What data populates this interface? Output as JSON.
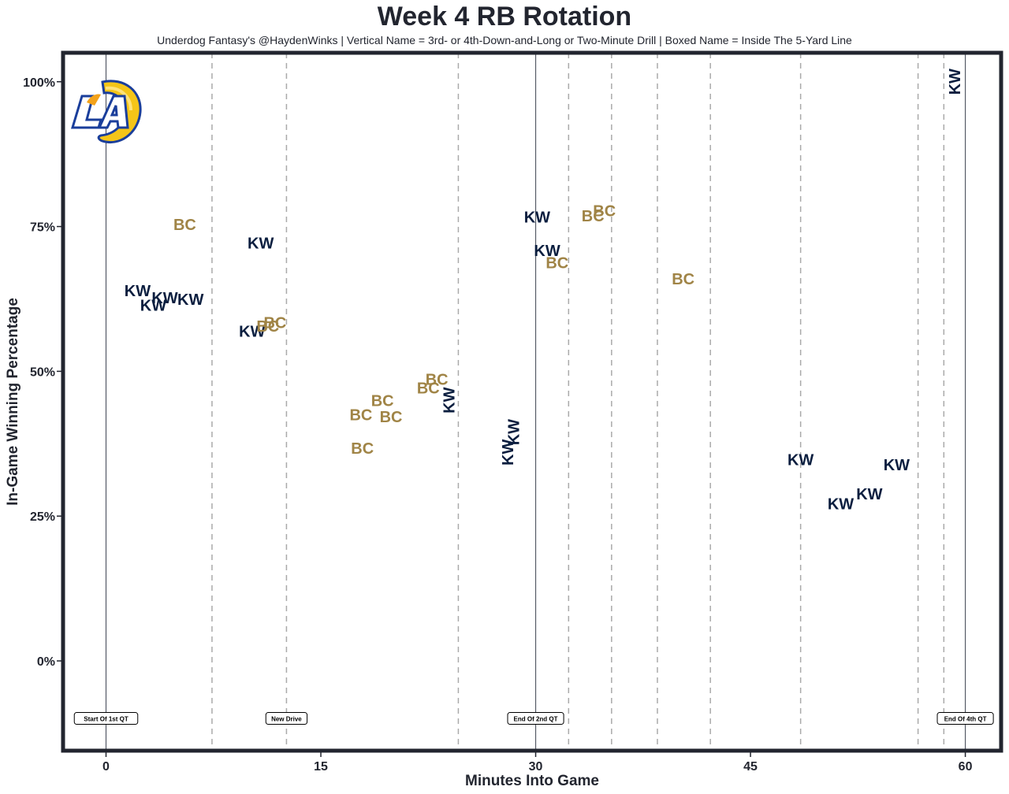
{
  "chart_data": {
    "type": "scatter",
    "title": "Week 4 RB Rotation",
    "subtitle": "Underdog Fantasy's @HaydenWinks | Vertical Name = 3rd- or 4th-Down-and-Long or Two-Minute Drill | Boxed Name = Inside The 5-Yard Line",
    "xlabel": "Minutes Into Game",
    "ylabel": "In-Game Winning Percentage",
    "xlim": [
      -3,
      62.5
    ],
    "ylim": [
      -0.155,
      1.05
    ],
    "xticks": [
      0,
      15,
      30,
      45,
      60
    ],
    "xtick_labels": [
      "0",
      "15",
      "30",
      "45",
      "60"
    ],
    "yticks": [
      0,
      0.25,
      0.5,
      0.75,
      1.0
    ],
    "ytick_labels": [
      "0%",
      "25%",
      "50%",
      "75%",
      "100%"
    ],
    "colors": {
      "KW": "#0b1e3f",
      "BC": "#a08446"
    },
    "solid_lines": [
      0,
      30,
      60
    ],
    "drive_lines": [
      7.4,
      12.6,
      24.6,
      32.3,
      35.3,
      38.5,
      42.2,
      48.5,
      56.7,
      58.5
    ],
    "annotations": [
      {
        "x": 0,
        "text": "Start Of 1st QT"
      },
      {
        "x": 12.6,
        "text": "New Drive"
      },
      {
        "x": 30,
        "text": "End Of 2nd QT"
      },
      {
        "x": 60,
        "text": "End Of 4th QT"
      }
    ],
    "points": [
      {
        "label": "BC",
        "x": 5.5,
        "y": 0.752,
        "vertical": false
      },
      {
        "label": "KW",
        "x": 2.2,
        "y": 0.638,
        "vertical": false
      },
      {
        "label": "KW",
        "x": 4.1,
        "y": 0.626,
        "vertical": false
      },
      {
        "label": "KW",
        "x": 5.9,
        "y": 0.623,
        "vertical": false
      },
      {
        "label": "KW",
        "x": 3.3,
        "y": 0.613,
        "vertical": false
      },
      {
        "label": "KW",
        "x": 10.8,
        "y": 0.72,
        "vertical": false
      },
      {
        "label": "KW",
        "x": 10.2,
        "y": 0.568,
        "vertical": false
      },
      {
        "label": "BC",
        "x": 11.3,
        "y": 0.577,
        "vertical": false
      },
      {
        "label": "BC",
        "x": 11.8,
        "y": 0.583,
        "vertical": false
      },
      {
        "label": "BC",
        "x": 17.8,
        "y": 0.424,
        "vertical": false
      },
      {
        "label": "BC",
        "x": 19.3,
        "y": 0.448,
        "vertical": false
      },
      {
        "label": "BC",
        "x": 19.9,
        "y": 0.42,
        "vertical": false
      },
      {
        "label": "BC",
        "x": 17.9,
        "y": 0.366,
        "vertical": false
      },
      {
        "label": "BC",
        "x": 22.5,
        "y": 0.47,
        "vertical": false
      },
      {
        "label": "BC",
        "x": 23.1,
        "y": 0.485,
        "vertical": false
      },
      {
        "label": "KW",
        "x": 24,
        "y": 0.45,
        "vertical": true
      },
      {
        "label": "KW",
        "x": 28.5,
        "y": 0.395,
        "vertical": true
      },
      {
        "label": "KW",
        "x": 28.1,
        "y": 0.36,
        "vertical": true
      },
      {
        "label": "KW",
        "x": 30.1,
        "y": 0.765,
        "vertical": false
      },
      {
        "label": "KW",
        "x": 30.8,
        "y": 0.707,
        "vertical": false
      },
      {
        "label": "BC",
        "x": 31.5,
        "y": 0.686,
        "vertical": false
      },
      {
        "label": "BC",
        "x": 34,
        "y": 0.767,
        "vertical": false
      },
      {
        "label": "BC",
        "x": 34.8,
        "y": 0.776,
        "vertical": false
      },
      {
        "label": "BC",
        "x": 40.3,
        "y": 0.658,
        "vertical": false
      },
      {
        "label": "KW",
        "x": 48.5,
        "y": 0.346,
        "vertical": false
      },
      {
        "label": "KW",
        "x": 51.3,
        "y": 0.27,
        "vertical": false
      },
      {
        "label": "KW",
        "x": 53.3,
        "y": 0.287,
        "vertical": false
      },
      {
        "label": "KW",
        "x": 55.2,
        "y": 0.337,
        "vertical": false
      },
      {
        "label": "KW",
        "x": 59.3,
        "y": 1.0,
        "vertical": true
      }
    ]
  }
}
